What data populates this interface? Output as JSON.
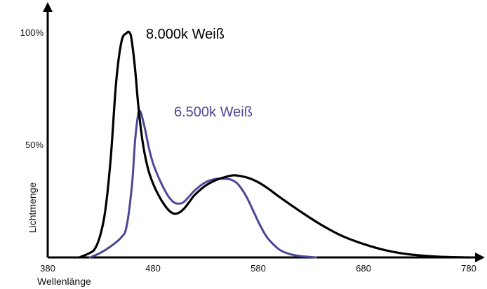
{
  "chart_data": {
    "type": "line",
    "xlabel": "Wellenlänge",
    "ylabel": "Lichtmenge",
    "x_ticks": [
      "380",
      "480",
      "580",
      "680",
      "780"
    ],
    "y_ticks": [
      "50%",
      "100%"
    ],
    "xlim": [
      380,
      790
    ],
    "ylim": [
      0,
      100
    ],
    "grid": false,
    "legend": "inline labels near peaks",
    "series": [
      {
        "name": "8.000k Weiß",
        "color": "#000000",
        "x": [
          410,
          420,
          425,
          430,
          435,
          440,
          445,
          450,
          455,
          458,
          460,
          463,
          466,
          470,
          475,
          480,
          485,
          490,
          495,
          500,
          505,
          510,
          515,
          520,
          530,
          540,
          550,
          555,
          560,
          570,
          580,
          590,
          600,
          620,
          640,
          660,
          680,
          700,
          720,
          740,
          760,
          780
        ],
        "y": [
          0,
          2,
          4,
          10,
          22,
          45,
          78,
          96,
          100,
          100,
          96,
          84,
          68,
          52,
          40,
          33,
          28,
          24,
          21,
          19.5,
          20,
          22,
          25,
          28,
          32,
          34.5,
          36,
          36.5,
          36.5,
          35.5,
          33.5,
          30.5,
          27,
          20.5,
          14.5,
          9.5,
          6,
          3.3,
          1.6,
          0.7,
          0.2,
          0
        ]
      },
      {
        "name": "6.500k Weiß",
        "color": "#4b4896",
        "x": [
          420,
          430,
          440,
          450,
          455,
          460,
          463,
          466,
          468,
          470,
          473,
          476,
          480,
          485,
          490,
          495,
          500,
          505,
          510,
          520,
          530,
          540,
          550,
          555,
          560,
          565,
          570,
          575,
          580,
          585,
          590,
          600,
          610,
          620,
          630,
          635
        ],
        "y": [
          0,
          2,
          5,
          9,
          14,
          32,
          52,
          64,
          65,
          62,
          56,
          49,
          42,
          36,
          31,
          27,
          24.5,
          24,
          25,
          30,
          33.5,
          35,
          35,
          34.5,
          33,
          30,
          26,
          21,
          16,
          11.5,
          8,
          3.5,
          1.5,
          0.6,
          0.2,
          0
        ]
      }
    ]
  }
}
